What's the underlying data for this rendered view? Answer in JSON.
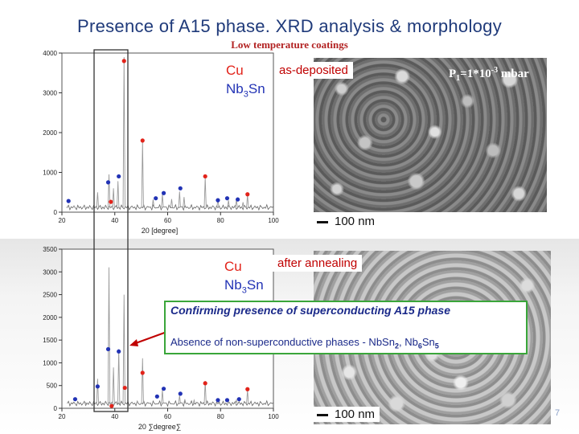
{
  "slide": {
    "title": "Presence of A15 phase. XRD analysis & morphology",
    "subtitle": "Low temperature coatings",
    "page_number": "7"
  },
  "legend": {
    "cu": "Cu",
    "nb3sn_prefix": "Nb",
    "nb3sn_sub": "3",
    "nb3sn_suffix": "Sn",
    "cu_color": "#e2231a",
    "nb3sn_color": "#2233b5"
  },
  "images": {
    "top_label": "as-deposited",
    "bottom_label": "after annealing",
    "pressure_prefix": "P",
    "pressure_sub": "1",
    "pressure_mid": "=1*10",
    "pressure_sup": "-3",
    "pressure_suffix": " mbar",
    "scale_top": "100 nm",
    "scale_bottom": "100 nm"
  },
  "notice": {
    "line1": "Confirming presence of superconducting A15 phase",
    "line2_prefix": "Absence of non-superconductive phases - Nb",
    "line2_sn": "Sn",
    "line2_sub1": "2",
    "line2_mid": ", Nb",
    "line2_sub2": "6",
    "line2_sn2": "Sn",
    "line2_sub3": "5"
  },
  "chart_data": [
    {
      "type": "line",
      "panel": "as-deposited",
      "xlabel": "20 [degree]",
      "ylabel": "",
      "xlim": [
        20,
        100
      ],
      "ylim": [
        0,
        4000
      ],
      "x_ticks": [
        20,
        40,
        60,
        80,
        100
      ],
      "y_ticks": [
        0,
        1000,
        2000,
        3000,
        4000
      ],
      "peaks": [
        {
          "x": 22,
          "y": 120
        },
        {
          "x": 24.6,
          "y": 160
        },
        {
          "x": 33.5,
          "y": 500
        },
        {
          "x": 37.8,
          "y": 950
        },
        {
          "x": 39.5,
          "y": 600
        },
        {
          "x": 41.2,
          "y": 780
        },
        {
          "x": 43.5,
          "y": 3900
        },
        {
          "x": 50.5,
          "y": 1800
        },
        {
          "x": 54.5,
          "y": 320
        },
        {
          "x": 58,
          "y": 450
        },
        {
          "x": 61.5,
          "y": 330
        },
        {
          "x": 64.5,
          "y": 520
        },
        {
          "x": 66.2,
          "y": 380
        },
        {
          "x": 74.2,
          "y": 880
        },
        {
          "x": 79,
          "y": 340
        },
        {
          "x": 83,
          "y": 300
        },
        {
          "x": 86,
          "y": 320
        },
        {
          "x": 88.5,
          "y": 250
        },
        {
          "x": 90.2,
          "y": 440
        }
      ],
      "markers": [
        {
          "series": "Nb3Sn",
          "x": 22.5,
          "y": 280
        },
        {
          "series": "Nb3Sn",
          "x": 37.5,
          "y": 750
        },
        {
          "series": "Cu",
          "x": 38.5,
          "y": 260
        },
        {
          "series": "Nb3Sn",
          "x": 41.5,
          "y": 900
        },
        {
          "series": "Cu",
          "x": 43.5,
          "y": 3800
        },
        {
          "series": "Cu",
          "x": 50.5,
          "y": 1800
        },
        {
          "series": "Nb3Sn",
          "x": 55.5,
          "y": 350
        },
        {
          "series": "Nb3Sn",
          "x": 58.5,
          "y": 480
        },
        {
          "series": "Nb3Sn",
          "x": 64.8,
          "y": 600
        },
        {
          "series": "Cu",
          "x": 74.2,
          "y": 900
        },
        {
          "series": "Nb3Sn",
          "x": 79,
          "y": 300
        },
        {
          "series": "Nb3Sn",
          "x": 82.5,
          "y": 350
        },
        {
          "series": "Nb3Sn",
          "x": 86.5,
          "y": 320
        },
        {
          "series": "Cu",
          "x": 90.2,
          "y": 450
        }
      ]
    },
    {
      "type": "line",
      "panel": "after annealing",
      "xlabel": "20 ∑degree∑",
      "ylabel": "",
      "xlim": [
        20,
        100
      ],
      "ylim": [
        0,
        3500
      ],
      "x_ticks": [
        20,
        40,
        60,
        80,
        100
      ],
      "y_ticks": [
        0,
        500,
        1000,
        1500,
        2000,
        2500,
        3000,
        3500
      ],
      "peaks": [
        {
          "x": 24,
          "y": 120
        },
        {
          "x": 29,
          "y": 120
        },
        {
          "x": 33.5,
          "y": 650
        },
        {
          "x": 37.8,
          "y": 3100
        },
        {
          "x": 39.5,
          "y": 900
        },
        {
          "x": 41.5,
          "y": 1300
        },
        {
          "x": 43.5,
          "y": 2500
        },
        {
          "x": 48.5,
          "y": 150
        },
        {
          "x": 50.5,
          "y": 1100
        },
        {
          "x": 58,
          "y": 400
        },
        {
          "x": 64.5,
          "y": 280
        },
        {
          "x": 66.5,
          "y": 200
        },
        {
          "x": 70,
          "y": 180
        },
        {
          "x": 74.2,
          "y": 600
        },
        {
          "x": 79,
          "y": 200
        },
        {
          "x": 83,
          "y": 150
        },
        {
          "x": 86,
          "y": 180
        },
        {
          "x": 90.2,
          "y": 400
        }
      ],
      "markers": [
        {
          "series": "Nb3Sn",
          "x": 25,
          "y": 200
        },
        {
          "series": "Nb3Sn",
          "x": 33.5,
          "y": 480
        },
        {
          "series": "Nb3Sn",
          "x": 37.5,
          "y": 1300
        },
        {
          "series": "Cu",
          "x": 38.8,
          "y": 50
        },
        {
          "series": "Nb3Sn",
          "x": 41.5,
          "y": 1250
        },
        {
          "series": "Cu",
          "x": 43.8,
          "y": 450
        },
        {
          "series": "Cu",
          "x": 50.5,
          "y": 780
        },
        {
          "series": "Nb3Sn",
          "x": 56,
          "y": 260
        },
        {
          "series": "Nb3Sn",
          "x": 58.5,
          "y": 430
        },
        {
          "series": "Nb3Sn",
          "x": 64.8,
          "y": 320
        },
        {
          "series": "Cu",
          "x": 74.2,
          "y": 550
        },
        {
          "series": "Nb3Sn",
          "x": 79,
          "y": 180
        },
        {
          "series": "Nb3Sn",
          "x": 82.5,
          "y": 180
        },
        {
          "series": "Nb3Sn",
          "x": 87,
          "y": 200
        },
        {
          "series": "Cu",
          "x": 90.2,
          "y": 420
        }
      ]
    }
  ]
}
